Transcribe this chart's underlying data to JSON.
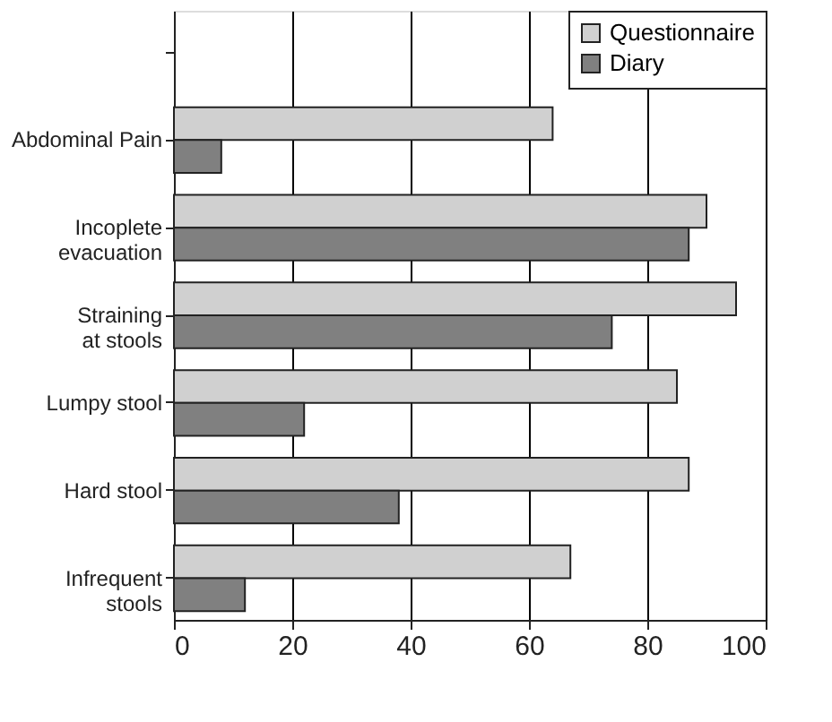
{
  "chart_data": {
    "type": "bar",
    "orientation": "horizontal",
    "categories": [
      null,
      "Abdominal Pain",
      "Incoplete\nevacuation",
      "Straining\nat stools",
      "Lumpy stool",
      "Hard stool",
      "Infrequent\nstools"
    ],
    "series": [
      {
        "name": "Questionnaire",
        "color": "#d0d0d0",
        "values": [
          null,
          64,
          90,
          95,
          85,
          87,
          67
        ]
      },
      {
        "name": "Diary",
        "color": "#808080",
        "values": [
          null,
          8,
          87,
          74,
          22,
          38,
          12
        ]
      }
    ],
    "xlim": [
      0,
      100
    ],
    "xticks": [
      0,
      20,
      40,
      60,
      80,
      100
    ],
    "grid": "x",
    "legend": "top right"
  }
}
